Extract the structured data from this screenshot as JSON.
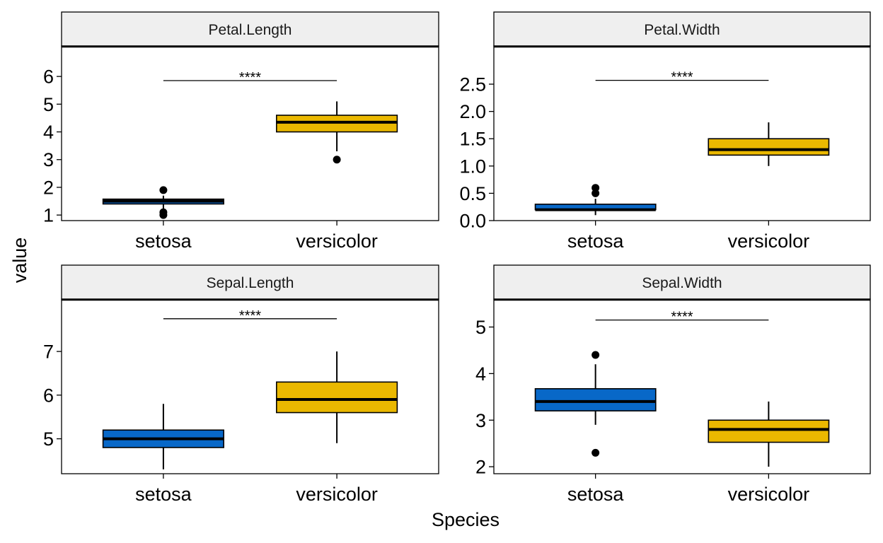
{
  "chart_data": {
    "type": "box",
    "xlabel": "Species",
    "ylabel": "value",
    "categories": [
      "setosa",
      "versicolor"
    ],
    "colors": {
      "setosa": "#0868c8",
      "versicolor": "#eab800"
    },
    "strip_fill": "#efefef",
    "panels": [
      {
        "title": "Petal.Length",
        "ylim": [
          0.8,
          7.1
        ],
        "yticks": [
          1,
          2,
          3,
          4,
          5,
          6
        ],
        "tick_labels": [
          "1",
          "2",
          "3",
          "4",
          "5",
          "6"
        ],
        "significance": "****",
        "bracket_y": 5.85,
        "boxes": [
          {
            "category": "setosa",
            "q1": 1.4,
            "median": 1.5,
            "q3": 1.575,
            "whisker_low": 1.2,
            "whisker_high": 1.7,
            "outliers": [
              1.0,
              1.1,
              1.9
            ]
          },
          {
            "category": "versicolor",
            "q1": 4.0,
            "median": 4.35,
            "q3": 4.6,
            "whisker_low": 3.3,
            "whisker_high": 5.1,
            "outliers": [
              3.0
            ]
          }
        ]
      },
      {
        "title": "Petal.Width",
        "ylim": [
          0.0,
          3.2
        ],
        "yticks": [
          0.0,
          0.5,
          1.0,
          1.5,
          2.0,
          2.5
        ],
        "tick_labels": [
          "0.0",
          "0.5",
          "1.0",
          "1.5",
          "2.0",
          "2.5"
        ],
        "significance": "****",
        "bracket_y": 2.57,
        "boxes": [
          {
            "category": "setosa",
            "q1": 0.2,
            "median": 0.2,
            "q3": 0.3,
            "whisker_low": 0.1,
            "whisker_high": 0.4,
            "outliers": [
              0.5,
              0.6
            ]
          },
          {
            "category": "versicolor",
            "q1": 1.2,
            "median": 1.3,
            "q3": 1.5,
            "whisker_low": 1.0,
            "whisker_high": 1.8,
            "outliers": []
          }
        ]
      },
      {
        "title": "Sepal.Length",
        "ylim": [
          4.2,
          8.2
        ],
        "yticks": [
          5,
          6,
          7
        ],
        "tick_labels": [
          "5",
          "6",
          "7"
        ],
        "significance": "****",
        "bracket_y": 7.75,
        "boxes": [
          {
            "category": "setosa",
            "q1": 4.8,
            "median": 5.0,
            "q3": 5.2,
            "whisker_low": 4.3,
            "whisker_high": 5.8,
            "outliers": []
          },
          {
            "category": "versicolor",
            "q1": 5.6,
            "median": 5.9,
            "q3": 6.3,
            "whisker_low": 4.9,
            "whisker_high": 7.0,
            "outliers": []
          }
        ]
      },
      {
        "title": "Sepal.Width",
        "ylim": [
          1.85,
          5.6
        ],
        "yticks": [
          2,
          3,
          4,
          5
        ],
        "tick_labels": [
          "2",
          "3",
          "4",
          "5"
        ],
        "significance": "****",
        "bracket_y": 5.15,
        "boxes": [
          {
            "category": "setosa",
            "q1": 3.2,
            "median": 3.4,
            "q3": 3.675,
            "whisker_low": 2.9,
            "whisker_high": 4.2,
            "outliers": [
              4.4,
              2.3
            ]
          },
          {
            "category": "versicolor",
            "q1": 2.525,
            "median": 2.8,
            "q3": 3.0,
            "whisker_low": 2.0,
            "whisker_high": 3.4,
            "outliers": []
          }
        ]
      }
    ]
  }
}
